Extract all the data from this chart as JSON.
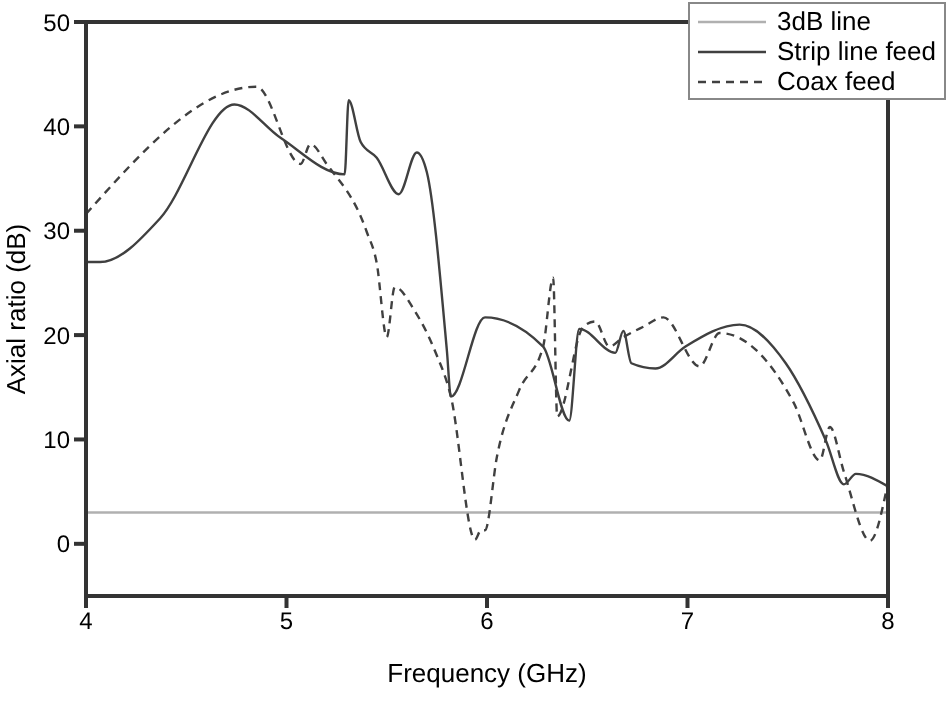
{
  "chart_data": {
    "type": "line",
    "xlabel": "Frequency (GHz)",
    "ylabel": "Axial ratio (dB)",
    "xlim": [
      4,
      8
    ],
    "ylim": [
      -5,
      50
    ],
    "xticks": [
      4,
      5,
      6,
      7,
      8
    ],
    "yticks": [
      0,
      10,
      20,
      30,
      40,
      50
    ],
    "legend": "top right",
    "marker": "none",
    "series": [
      {
        "name": "3dB line",
        "color": "#b0b0b0",
        "line_style": "solid",
        "x": [
          4,
          8
        ],
        "values": [
          3,
          3
        ]
      },
      {
        "name": "Strip line feed",
        "color": "#404040",
        "line_style": "solid",
        "x": [
          4,
          4.07,
          4.37,
          4.74,
          4.97,
          5.29,
          5.31,
          5.37,
          5.45,
          5.56,
          5.65,
          5.7,
          5.8,
          5.82,
          5.99,
          6.28,
          6.41,
          6.46,
          6.64,
          6.68,
          6.72,
          6.84,
          6.99,
          7.26,
          7.49,
          7.69,
          7.78,
          7.84,
          8
        ],
        "values": [
          27,
          27,
          31.2,
          42.1,
          38.9,
          35.4,
          42.5,
          38.5,
          37,
          33.5,
          37.5,
          35.6,
          18.5,
          14.1,
          21.7,
          18.9,
          11.8,
          20.6,
          18.3,
          20.4,
          17.3,
          16.8,
          18.9,
          21,
          17.3,
          9.9,
          5.7,
          6.7,
          5.5
        ]
      },
      {
        "name": "Coax feed",
        "color": "#404040",
        "line_style": "dashed",
        "x": [
          4,
          4.85,
          5.07,
          5.12,
          5.2,
          5.4,
          5.45,
          5.5,
          5.54,
          5.64,
          5.74,
          5.82,
          5.94,
          5.97,
          5.99,
          6.05,
          6.16,
          6.28,
          6.33,
          6.35,
          6.48,
          6.54,
          6.61,
          6.68,
          6.78,
          6.88,
          7.06,
          7.16,
          7.53,
          7.66,
          7.71,
          7.78,
          7.91,
          8
        ],
        "values": [
          31.6,
          43.8,
          36.4,
          38.3,
          36.4,
          29.9,
          26.9,
          19.8,
          24.6,
          22.3,
          18.5,
          14.1,
          0.4,
          1.3,
          1.3,
          8.4,
          14.7,
          18.9,
          25.5,
          12.2,
          20.8,
          21.3,
          18.9,
          19.8,
          20.8,
          21.7,
          17,
          20.2,
          13.5,
          8,
          11.2,
          6.9,
          0.3,
          5.9
        ]
      }
    ]
  }
}
